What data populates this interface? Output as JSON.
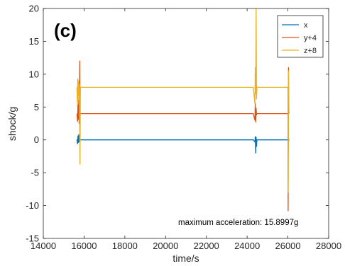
{
  "chart_data": {
    "type": "line",
    "panel_label": "(c)",
    "xlabel": "time/s",
    "ylabel": "shock/g",
    "xlim": [
      14000,
      28000
    ],
    "ylim": [
      -15,
      20
    ],
    "xticks": [
      14000,
      16000,
      18000,
      20000,
      22000,
      24000,
      26000,
      28000
    ],
    "yticks": [
      -15,
      -10,
      -5,
      0,
      5,
      10,
      15,
      20
    ],
    "annotation": "maximum acceleration: 15.8997g",
    "legend_position": "top-right",
    "grid": false,
    "series": [
      {
        "name": "x",
        "color": "#0072BD",
        "points": [
          [
            15650,
            0.1
          ],
          [
            15680,
            -0.6
          ],
          [
            15700,
            0.6
          ],
          [
            15720,
            -0.4
          ],
          [
            15740,
            0.8
          ],
          [
            15760,
            -0.3
          ],
          [
            15790,
            0.0
          ],
          [
            24300,
            0.0
          ],
          [
            24380,
            -0.3
          ],
          [
            24400,
            0.5
          ],
          [
            24420,
            -2.0
          ],
          [
            24440,
            0.4
          ],
          [
            24460,
            -1.0
          ],
          [
            24480,
            0.0
          ],
          [
            26000,
            0.0
          ],
          [
            26010,
            0.3
          ],
          [
            26030,
            -0.2
          ],
          [
            26050,
            0.1
          ]
        ]
      },
      {
        "name": "y+4",
        "color": "#D95319",
        "points": [
          [
            15650,
            4.0
          ],
          [
            15680,
            2.8
          ],
          [
            15700,
            5.3
          ],
          [
            15720,
            3.1
          ],
          [
            15740,
            6.0
          ],
          [
            15760,
            2.5
          ],
          [
            15790,
            12.0
          ],
          [
            15800,
            3.8
          ],
          [
            15820,
            4.0
          ],
          [
            24300,
            4.0
          ],
          [
            24380,
            3.0
          ],
          [
            24400,
            5.6
          ],
          [
            24420,
            2.7
          ],
          [
            24440,
            4.8
          ],
          [
            24460,
            3.8
          ],
          [
            24480,
            4.0
          ],
          [
            26000,
            4.0
          ],
          [
            26010,
            -10.8
          ],
          [
            26030,
            11.0
          ],
          [
            26040,
            4.5
          ],
          [
            26050,
            4.0
          ]
        ]
      },
      {
        "name": "z+8",
        "color": "#EDB120",
        "points": [
          [
            15650,
            8.0
          ],
          [
            15670,
            5.2
          ],
          [
            15690,
            9.3
          ],
          [
            15710,
            6.0
          ],
          [
            15730,
            9.0
          ],
          [
            15750,
            6.8
          ],
          [
            15770,
            8.5
          ],
          [
            15800,
            -3.7
          ],
          [
            15820,
            8.0
          ],
          [
            24300,
            8.0
          ],
          [
            24380,
            5.5
          ],
          [
            24400,
            11.0
          ],
          [
            24420,
            7.0
          ],
          [
            24440,
            20.0
          ],
          [
            24460,
            6.2
          ],
          [
            24480,
            8.0
          ],
          [
            26000,
            8.0
          ],
          [
            26010,
            -8.0
          ],
          [
            26030,
            10.5
          ],
          [
            26040,
            7.5
          ],
          [
            26050,
            8.0
          ]
        ]
      }
    ]
  }
}
